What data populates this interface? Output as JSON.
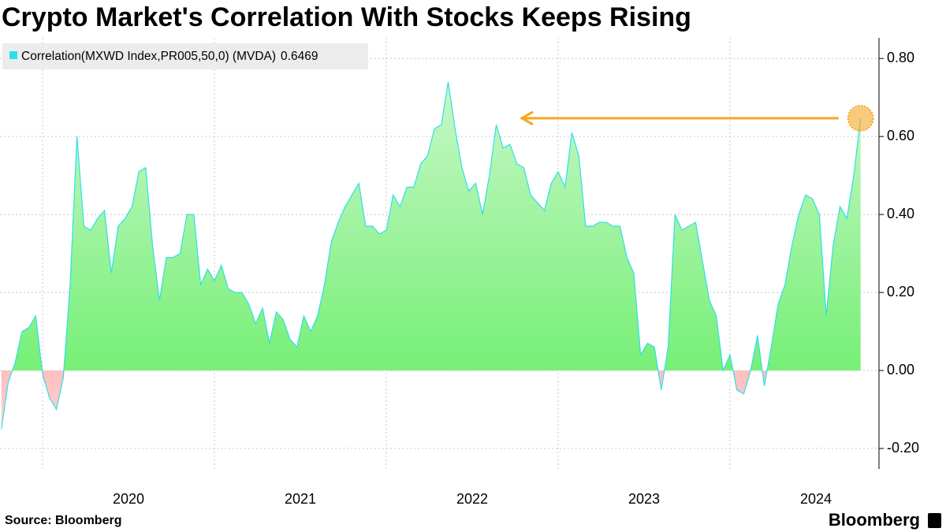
{
  "chart_data": {
    "type": "area",
    "title": "Crypto Market's Correlation With Stocks Keeps Rising",
    "source": "Source: Bloomberg",
    "logo": "Bloomberg",
    "x": [
      2019.76,
      2019.8,
      2019.84,
      2019.88,
      2019.92,
      2019.96,
      2020.0,
      2020.04,
      2020.08,
      2020.12,
      2020.16,
      2020.2,
      2020.24,
      2020.28,
      2020.32,
      2020.36,
      2020.4,
      2020.44,
      2020.48,
      2020.52,
      2020.56,
      2020.6,
      2020.64,
      2020.68,
      2020.72,
      2020.76,
      2020.8,
      2020.84,
      2020.88,
      2020.92,
      2020.96,
      2021.0,
      2021.04,
      2021.08,
      2021.12,
      2021.16,
      2021.2,
      2021.24,
      2021.28,
      2021.32,
      2021.36,
      2021.4,
      2021.44,
      2021.48,
      2021.52,
      2021.56,
      2021.6,
      2021.64,
      2021.68,
      2021.72,
      2021.76,
      2021.8,
      2021.84,
      2021.88,
      2021.92,
      2021.96,
      2022.0,
      2022.04,
      2022.08,
      2022.12,
      2022.16,
      2022.2,
      2022.24,
      2022.28,
      2022.32,
      2022.36,
      2022.4,
      2022.44,
      2022.48,
      2022.52,
      2022.56,
      2022.6,
      2022.64,
      2022.68,
      2022.72,
      2022.76,
      2022.8,
      2022.84,
      2022.88,
      2022.92,
      2022.96,
      2023.0,
      2023.04,
      2023.08,
      2023.12,
      2023.16,
      2023.2,
      2023.24,
      2023.28,
      2023.32,
      2023.36,
      2023.4,
      2023.44,
      2023.48,
      2023.52,
      2023.56,
      2023.6,
      2023.64,
      2023.68,
      2023.72,
      2023.76,
      2023.8,
      2023.84,
      2023.88,
      2023.92,
      2023.96,
      2024.0,
      2024.04,
      2024.08,
      2024.12,
      2024.16,
      2024.2,
      2024.24,
      2024.28,
      2024.32,
      2024.36,
      2024.4,
      2024.44,
      2024.48,
      2024.52,
      2024.56,
      2024.6,
      2024.64,
      2024.68,
      2024.72,
      2024.76
    ],
    "series": [
      {
        "name": "Correlation(MXWD Index,PR005,50,0) (MVDA)",
        "color": "#2de0e8",
        "values": [
          -0.15,
          -0.03,
          0.02,
          0.1,
          0.11,
          0.14,
          -0.01,
          -0.07,
          -0.1,
          -0.02,
          0.22,
          0.6,
          0.37,
          0.36,
          0.39,
          0.41,
          0.25,
          0.37,
          0.39,
          0.42,
          0.51,
          0.52,
          0.32,
          0.18,
          0.29,
          0.29,
          0.3,
          0.4,
          0.4,
          0.22,
          0.26,
          0.23,
          0.27,
          0.21,
          0.2,
          0.2,
          0.17,
          0.12,
          0.16,
          0.07,
          0.15,
          0.13,
          0.08,
          0.06,
          0.14,
          0.1,
          0.14,
          0.22,
          0.33,
          0.38,
          0.42,
          0.45,
          0.48,
          0.37,
          0.37,
          0.35,
          0.36,
          0.45,
          0.42,
          0.47,
          0.47,
          0.53,
          0.55,
          0.62,
          0.63,
          0.74,
          0.62,
          0.52,
          0.46,
          0.48,
          0.4,
          0.5,
          0.63,
          0.57,
          0.58,
          0.53,
          0.52,
          0.45,
          0.43,
          0.41,
          0.48,
          0.51,
          0.47,
          0.61,
          0.55,
          0.37,
          0.37,
          0.38,
          0.38,
          0.37,
          0.37,
          0.29,
          0.25,
          0.04,
          0.07,
          0.06,
          -0.05,
          0.06,
          0.4,
          0.36,
          0.37,
          0.38,
          0.28,
          0.18,
          0.14,
          0.0,
          0.04,
          -0.05,
          -0.06,
          0.0,
          0.09,
          -0.04,
          0.06,
          0.17,
          0.22,
          0.32,
          0.4,
          0.45,
          0.44,
          0.4,
          0.14,
          0.32,
          0.42,
          0.39,
          0.5,
          0.6469
        ]
      }
    ],
    "positive_fill": "#7ef07a",
    "negative_fill": "#f08080",
    "annotation_color": "#f5a623",
    "xlim": [
      2019.752,
      2024.867
    ],
    "xticks": [
      {
        "value": 2020.5,
        "label": "2020"
      },
      {
        "value": 2021.5,
        "label": "2021"
      },
      {
        "value": 2022.5,
        "label": "2022"
      },
      {
        "value": 2023.5,
        "label": "2023"
      },
      {
        "value": 2024.5,
        "label": "2024"
      }
    ],
    "xgrid": [
      2020,
      2021,
      2022,
      2023,
      2024
    ],
    "ylim": [
      -0.2525,
      0.853
    ],
    "yticks": [
      {
        "value": -0.2,
        "label": "-0.20"
      },
      {
        "value": 0,
        "label": "0.00"
      },
      {
        "value": 0.2,
        "label": "0.20"
      },
      {
        "value": 0.4,
        "label": "0.40"
      },
      {
        "value": 0.6,
        "label": "0.60"
      },
      {
        "value": 0.8,
        "label": "0.80"
      }
    ],
    "grid": true,
    "legend": "top-left"
  }
}
